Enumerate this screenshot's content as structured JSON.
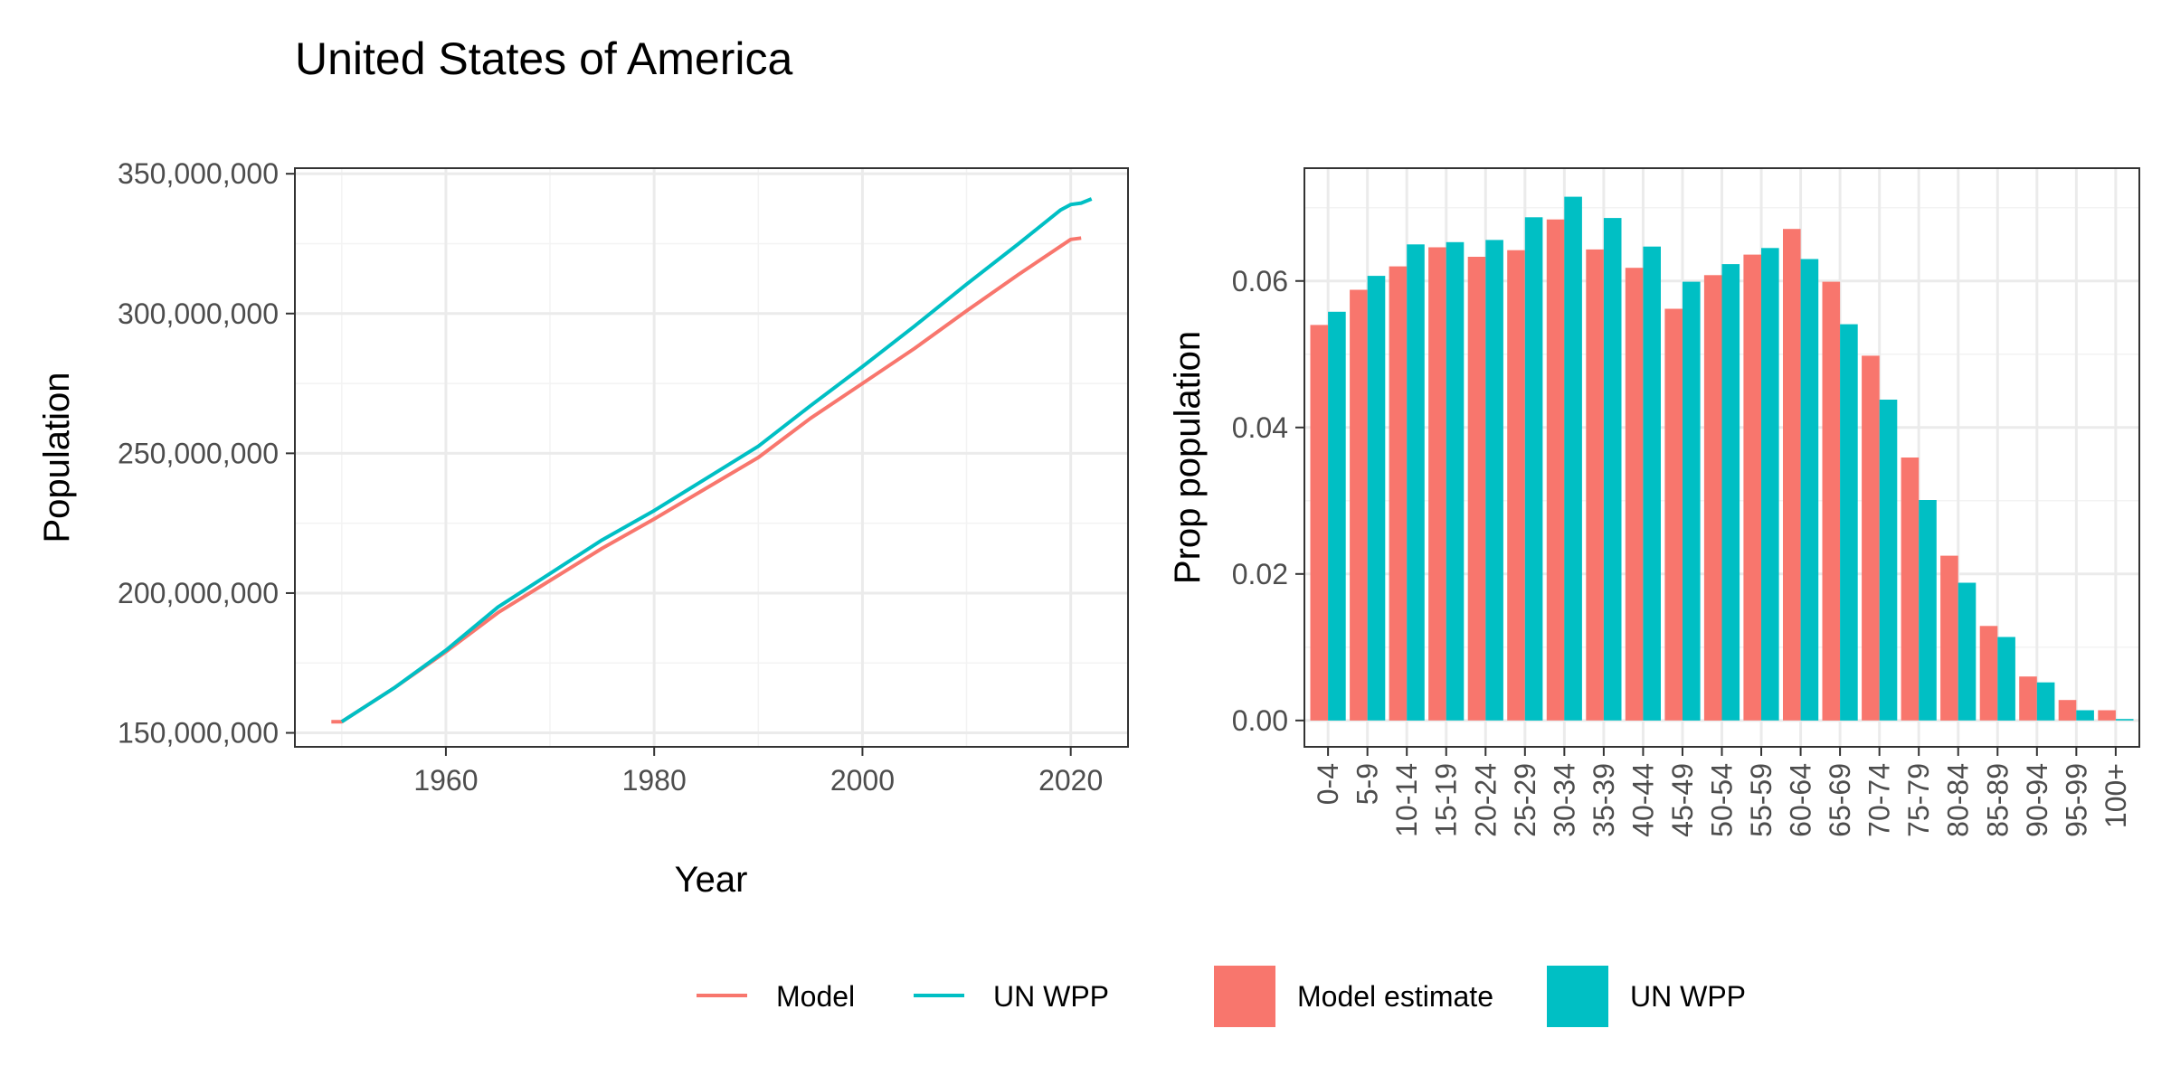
{
  "title": "United States of America",
  "colors": {
    "model": "#F8766D",
    "un_wpp": "#00BFC4"
  },
  "chart_data": [
    {
      "type": "line",
      "xlabel": "Year",
      "ylabel": "Population",
      "xlim": [
        1945.5,
        2025.5
      ],
      "ylim": [
        145000000,
        352000000
      ],
      "x_ticks": [
        1960,
        1980,
        2000,
        2020
      ],
      "x_tick_labels": [
        "1960",
        "1980",
        "2000",
        "2020"
      ],
      "y_ticks": [
        150000000,
        200000000,
        250000000,
        300000000,
        350000000
      ],
      "y_tick_labels": [
        "150,000,000",
        "200,000,000",
        "250,000,000",
        "300,000,000",
        "350,000,000"
      ],
      "grid": true,
      "series": [
        {
          "name": "Model",
          "color": "#F8766D",
          "x": [
            1949,
            1950,
            1955,
            1960,
            1965,
            1970,
            1975,
            1980,
            1985,
            1990,
            1995,
            2000,
            2005,
            2010,
            2015,
            2020,
            2021
          ],
          "y": [
            154000000,
            154000000,
            166000000,
            179000000,
            193000000,
            204500000,
            216000000,
            226500000,
            237500000,
            248500000,
            262500000,
            275000000,
            287500000,
            301000000,
            314000000,
            326500000,
            327000000
          ]
        },
        {
          "name": "UN WPP",
          "color": "#00BFC4",
          "x": [
            1950,
            1955,
            1960,
            1965,
            1970,
            1975,
            1980,
            1985,
            1990,
            1995,
            2000,
            2005,
            2010,
            2015,
            2019,
            2020,
            2021,
            2022
          ],
          "y": [
            154000000,
            166000000,
            179500000,
            195000000,
            207000000,
            219000000,
            229500000,
            241000000,
            252500000,
            267000000,
            281000000,
            295500000,
            310500000,
            325000000,
            337000000,
            339000000,
            339500000,
            341000000
          ]
        }
      ],
      "legend": {
        "position": "bottom",
        "entries": [
          "Model",
          "UN WPP"
        ]
      }
    },
    {
      "type": "bar",
      "xlabel": "",
      "ylabel": "Prop population",
      "ylim": [
        -0.0036,
        0.0754
      ],
      "y_ticks": [
        0.0,
        0.02,
        0.04,
        0.06
      ],
      "y_tick_labels": [
        "0.00",
        "0.02",
        "0.04",
        "0.06"
      ],
      "grid": true,
      "categories": [
        "0-4",
        "5-9",
        "10-14",
        "15-19",
        "20-24",
        "25-29",
        "30-34",
        "35-39",
        "40-44",
        "45-49",
        "50-54",
        "55-59",
        "60-64",
        "65-69",
        "70-74",
        "75-79",
        "80-84",
        "85-89",
        "90-94",
        "95-99",
        "100+"
      ],
      "series": [
        {
          "name": "Model estimate",
          "color": "#F8766D",
          "values": [
            0.054,
            0.0588,
            0.062,
            0.0646,
            0.0633,
            0.0642,
            0.0684,
            0.0643,
            0.0618,
            0.0562,
            0.0608,
            0.0636,
            0.0671,
            0.0599,
            0.0498,
            0.0359,
            0.0225,
            0.0129,
            0.006,
            0.0028,
            0.0014
          ]
        },
        {
          "name": "UN WPP",
          "color": "#00BFC4",
          "values": [
            0.0558,
            0.0607,
            0.065,
            0.0653,
            0.0656,
            0.0687,
            0.0715,
            0.0686,
            0.0647,
            0.0599,
            0.0623,
            0.0645,
            0.063,
            0.0541,
            0.0438,
            0.0301,
            0.0188,
            0.0114,
            0.0052,
            0.0014,
            0.0002
          ]
        }
      ],
      "legend": {
        "position": "bottom",
        "entries": [
          "Model estimate",
          "UN WPP"
        ]
      }
    }
  ]
}
